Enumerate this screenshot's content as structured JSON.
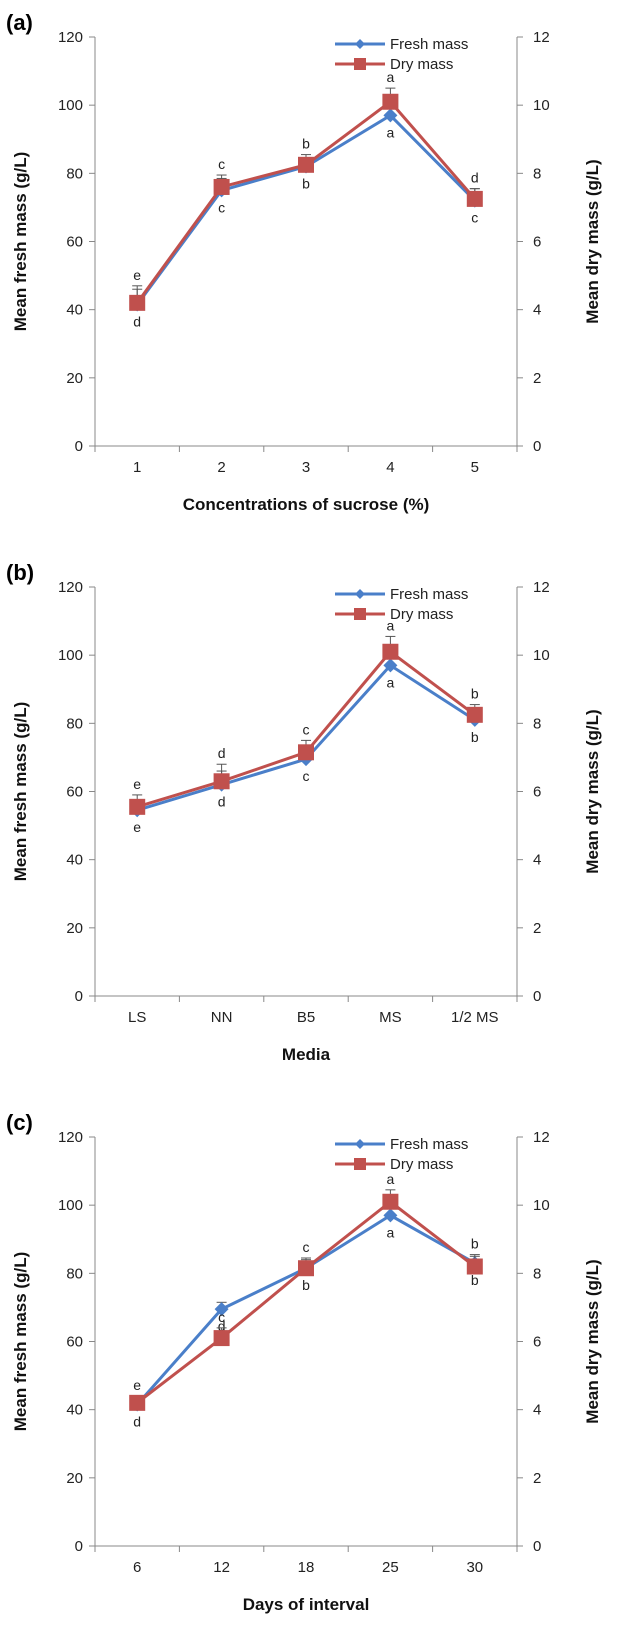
{
  "chart_data": [
    {
      "type": "line",
      "panel_label": "(a)",
      "xlabel": "Concentrations of sucrose (%)",
      "ylabel": "Mean fresh mass (g/L)",
      "y2label": "Mean dry mass (g/L)",
      "categories": [
        "1",
        "2",
        "3",
        "4",
        "5"
      ],
      "ylim": [
        0,
        120
      ],
      "y2lim": [
        0,
        12
      ],
      "yticks": [
        "0",
        "20",
        "40",
        "60",
        "80",
        "100",
        "120"
      ],
      "y2ticks": [
        "0",
        "2",
        "4",
        "6",
        "8",
        "10",
        "12"
      ],
      "legend_position": "top-right",
      "series": [
        {
          "name": "Fresh mass",
          "axis": "left",
          "color": "#4a7fc9",
          "marker": "diamond",
          "values": [
            41.5,
            75.0,
            82.0,
            97.0,
            72.0
          ],
          "error": [
            4.5,
            3.5,
            2.5,
            3.0,
            3.5
          ],
          "letters": [
            "d",
            "c",
            "b",
            "a",
            "c"
          ]
        },
        {
          "name": "Dry mass",
          "axis": "right",
          "color": "#c0504d",
          "marker": "square",
          "values": [
            4.2,
            7.6,
            8.25,
            10.1,
            7.25
          ],
          "error": [
            0.5,
            0.35,
            0.3,
            0.4,
            0.3
          ],
          "letters": [
            "e",
            "c",
            "b",
            "a",
            "d"
          ]
        }
      ]
    },
    {
      "type": "line",
      "panel_label": "(b)",
      "xlabel": "Media",
      "ylabel": "Mean fresh mass (g/L)",
      "y2label": "Mean dry mass (g/L)",
      "categories": [
        "LS",
        "NN",
        "B5",
        "MS",
        "1/2 MS"
      ],
      "ylim": [
        0,
        120
      ],
      "y2lim": [
        0,
        12
      ],
      "yticks": [
        "0",
        "20",
        "40",
        "60",
        "80",
        "100",
        "120"
      ],
      "y2ticks": [
        "0",
        "2",
        "4",
        "6",
        "8",
        "10",
        "12"
      ],
      "legend_position": "top-right",
      "series": [
        {
          "name": "Fresh mass",
          "axis": "left",
          "color": "#4a7fc9",
          "marker": "diamond",
          "values": [
            54.5,
            62.0,
            69.5,
            97.0,
            81.0
          ],
          "error": [
            3.0,
            4.0,
            3.0,
            3.0,
            2.5
          ],
          "letters": [
            "e",
            "d",
            "c",
            "a",
            "b"
          ]
        },
        {
          "name": "Dry mass",
          "axis": "right",
          "color": "#c0504d",
          "marker": "square",
          "values": [
            5.55,
            6.3,
            7.15,
            10.1,
            8.25
          ],
          "error": [
            0.35,
            0.5,
            0.35,
            0.45,
            0.3
          ],
          "letters": [
            "e",
            "d",
            "c",
            "a",
            "b"
          ]
        }
      ]
    },
    {
      "type": "line",
      "panel_label": "(c)",
      "xlabel": "Days of interval",
      "ylabel": "Mean fresh mass (g/L)",
      "y2label": "Mean dry mass (g/L)",
      "categories": [
        "6",
        "12",
        "18",
        "25",
        "30"
      ],
      "ylim": [
        0,
        120
      ],
      "y2lim": [
        0,
        12
      ],
      "yticks": [
        "0",
        "20",
        "40",
        "60",
        "80",
        "100",
        "120"
      ],
      "y2ticks": [
        "0",
        "2",
        "4",
        "6",
        "8",
        "10",
        "12"
      ],
      "legend_position": "top-right",
      "series": [
        {
          "name": "Fresh mass",
          "axis": "left",
          "color": "#4a7fc9",
          "marker": "diamond",
          "values": [
            41.5,
            69.5,
            81.5,
            97.0,
            83.0
          ],
          "error": [
            2.0,
            2.0,
            2.5,
            2.5,
            2.0
          ],
          "letters": [
            "d",
            "d",
            "b",
            "a",
            "b"
          ]
        },
        {
          "name": "Dry mass",
          "axis": "right",
          "color": "#c0504d",
          "marker": "square",
          "values": [
            4.2,
            6.1,
            8.15,
            10.1,
            8.2
          ],
          "error": [
            0.2,
            0.3,
            0.3,
            0.35,
            0.35
          ],
          "letters": [
            "e",
            "c",
            "c",
            "a",
            "b"
          ]
        }
      ]
    }
  ]
}
